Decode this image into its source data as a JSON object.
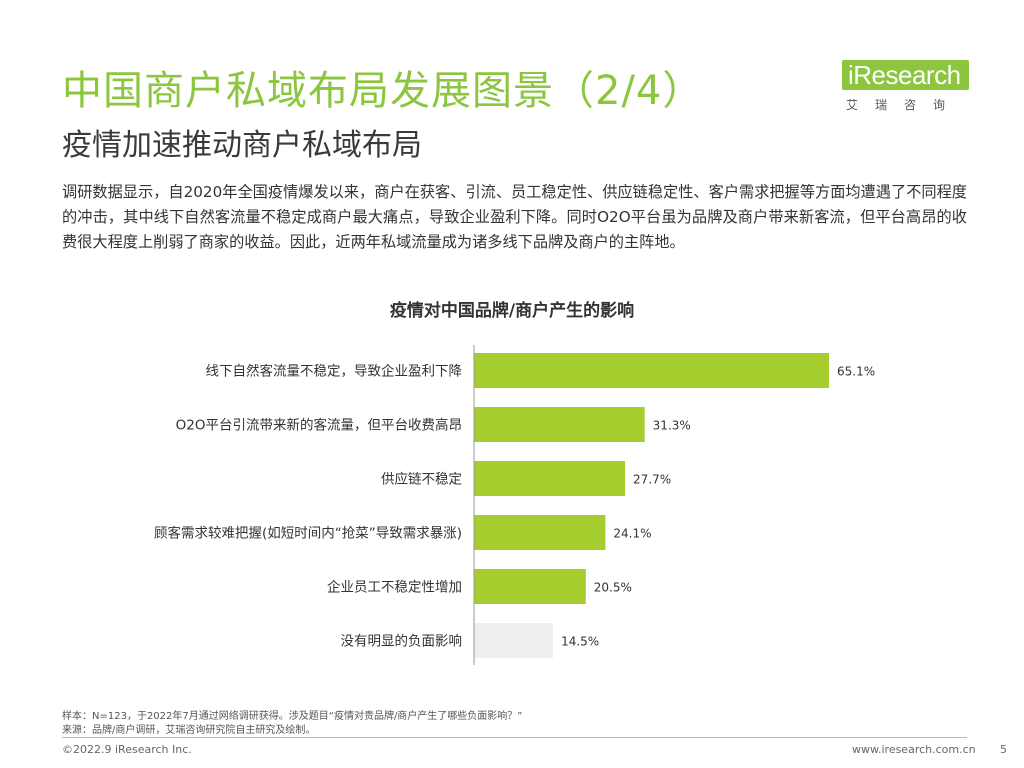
{
  "header": {
    "title": "中国商户私域布局发展图景（2/4）",
    "subtitle": "疫情加速推动商户私域布局"
  },
  "logo": {
    "wordmark": "iResearch",
    "tagline": "艾瑞咨询"
  },
  "intro": "调研数据显示，自2020年全国疫情爆发以来，商户在获客、引流、员工稳定性、供应链稳定性、客户需求把握等方面均遭遇了不同程度的冲击，其中线下自然客流量不稳定成商户最大痛点，导致企业盈利下降。同时O2O平台虽为品牌及商户带来新客流，但平台高昂的收费很大程度上削弱了商家的收益。因此，近两年私域流量成为诸多线下品牌及商户的主阵地。",
  "chart_data": {
    "type": "bar",
    "orientation": "horizontal",
    "title": "疫情对中国品牌/商户产生的影响",
    "categories": [
      "线下自然客流量不稳定，导致企业盈利下降",
      "O2O平台引流带来新的客流量，但平台收费高昂",
      "供应链不稳定",
      "顾客需求较难把握(如短时间内“抢菜”导致需求暴涨)",
      "企业员工不稳定性增加",
      "没有明显的负面影响"
    ],
    "values": [
      65.1,
      31.3,
      27.7,
      24.1,
      20.5,
      14.5
    ],
    "value_labels": [
      "65.1%",
      "31.3%",
      "27.7%",
      "24.1%",
      "20.5%",
      "14.5%"
    ],
    "unit": "%",
    "colors": [
      "#a6cd2e",
      "#a6cd2e",
      "#a6cd2e",
      "#a6cd2e",
      "#a6cd2e",
      "#eeeeee"
    ],
    "xlim": [
      0,
      65.1
    ],
    "grid": false,
    "legend": "none"
  },
  "notes": {
    "sample": "样本：N=123，于2022年7月通过网络调研获得。涉及题目“疫情对贵品牌/商户产生了哪些负面影响？”",
    "source": "来源：品牌/商户调研，艾瑞咨询研究院自主研究及绘制。"
  },
  "footer": {
    "copyright": "©2022.9 iResearch Inc.",
    "website": "www.iresearch.com.cn",
    "page": "5"
  }
}
